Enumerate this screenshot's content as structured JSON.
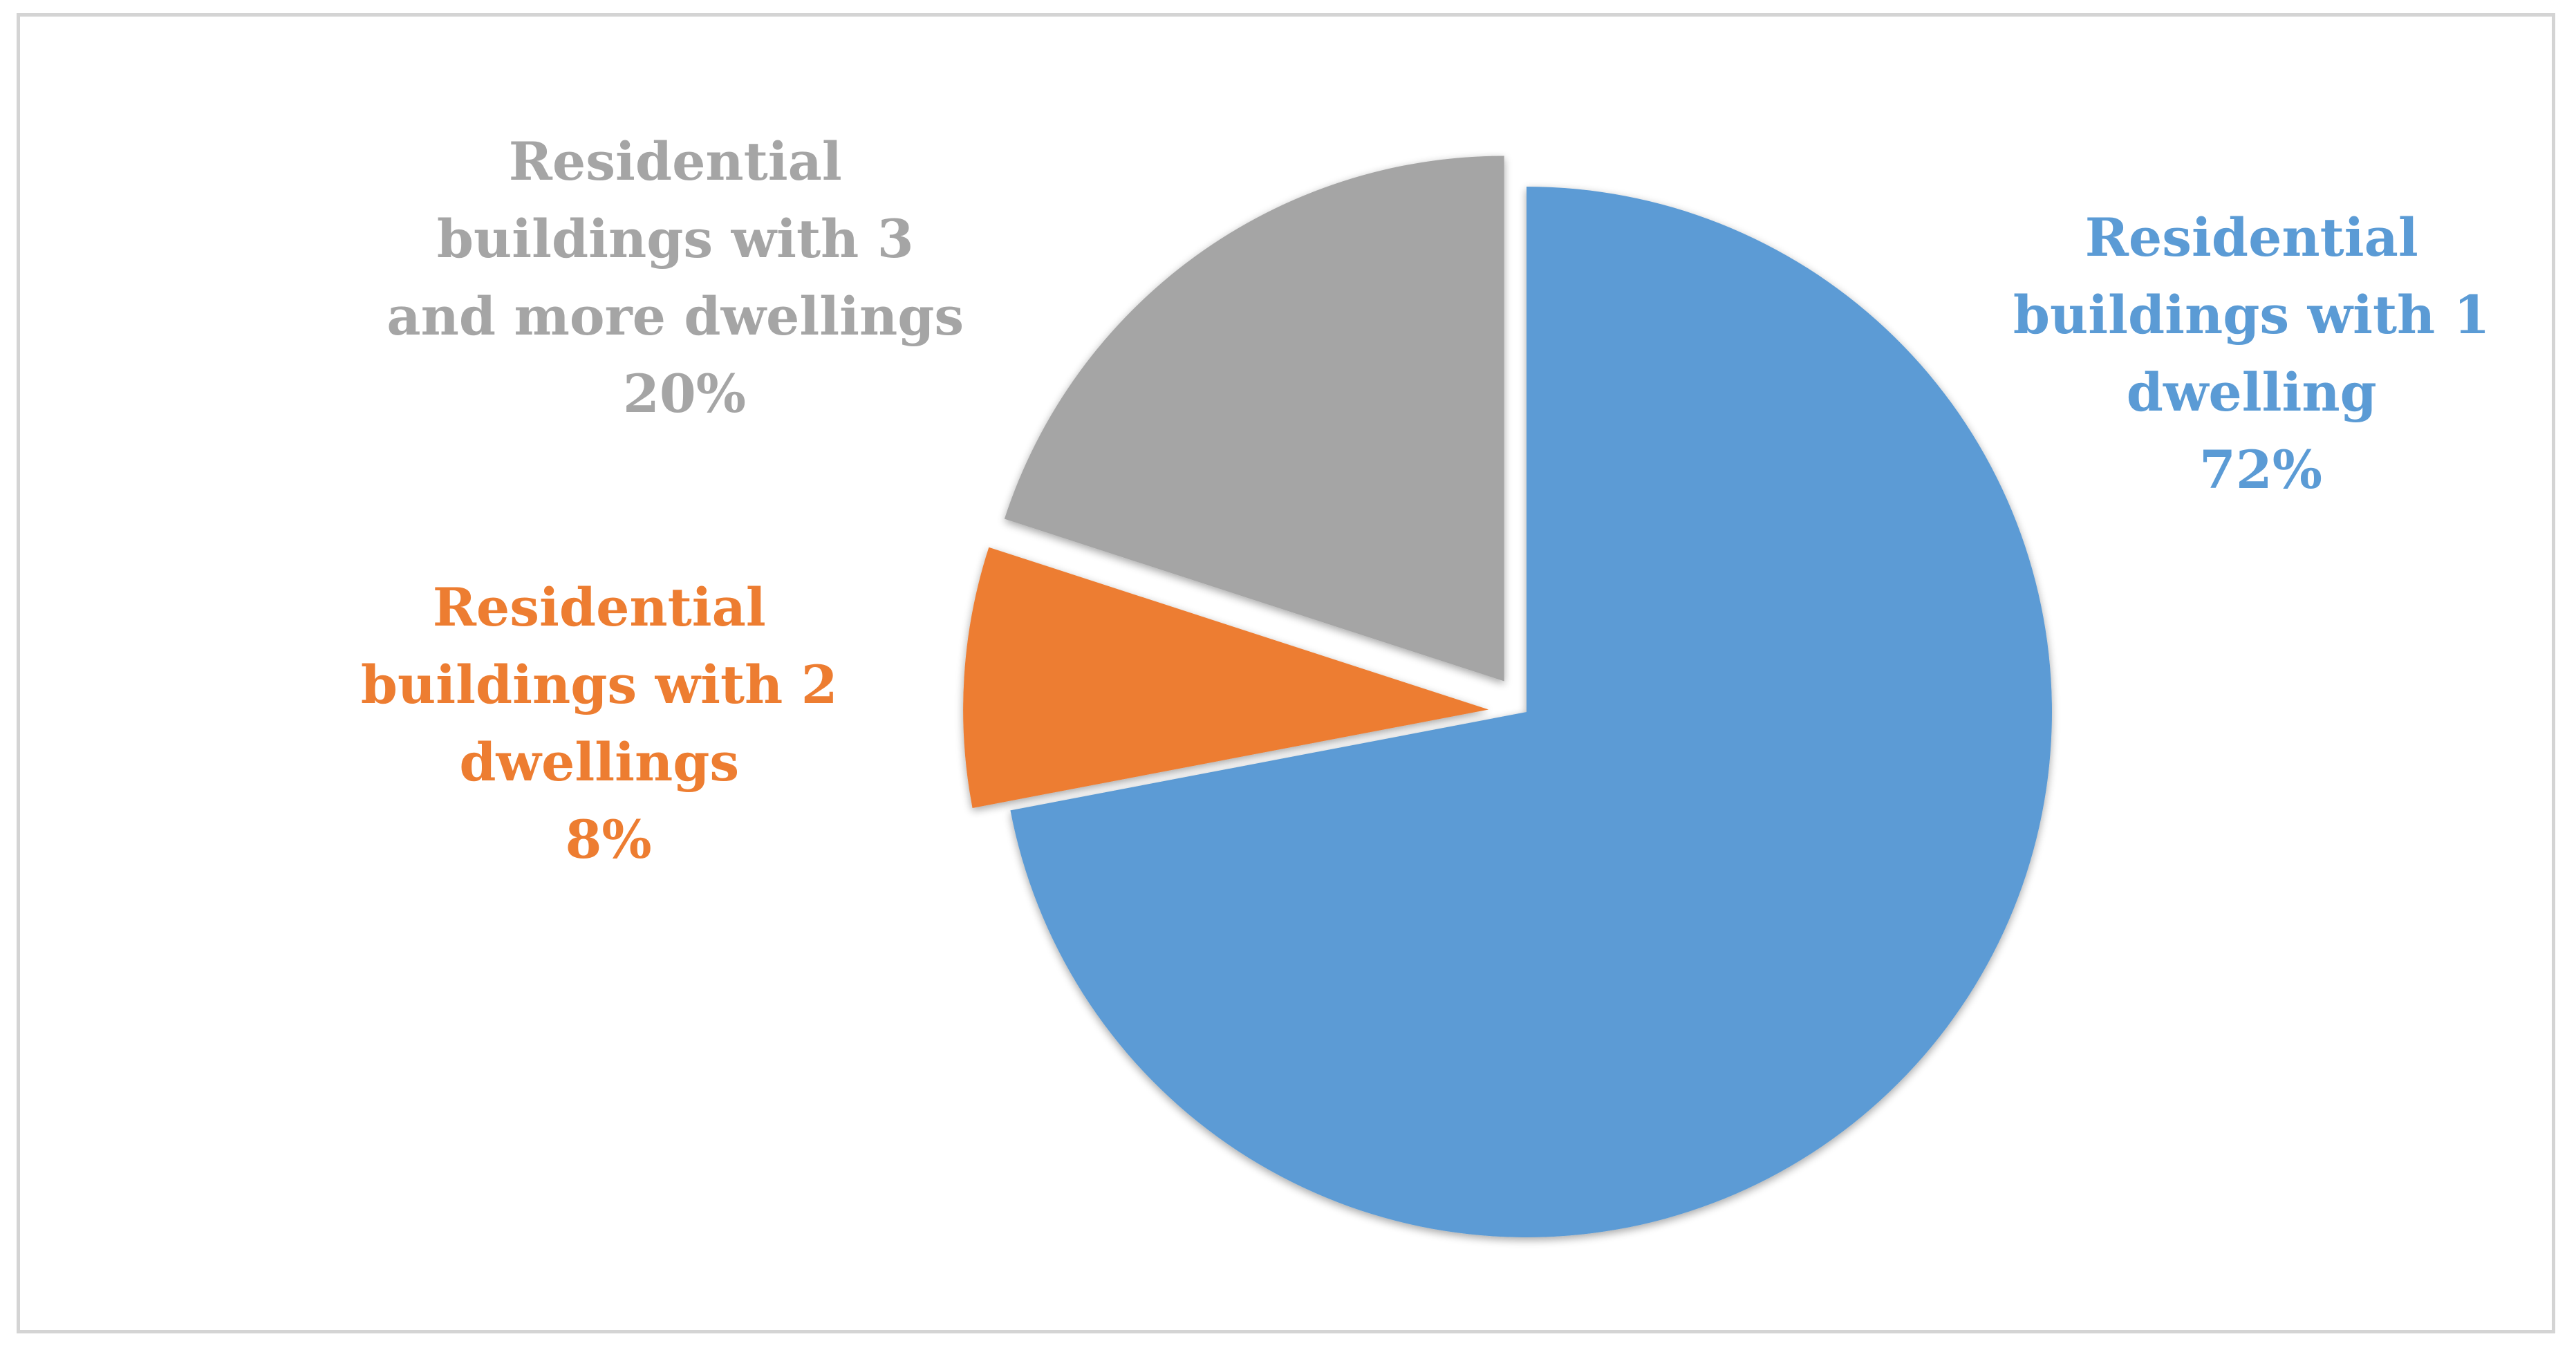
{
  "chart_data": {
    "type": "pie",
    "title": "",
    "slices": [
      {
        "label_lines": [
          "Residential",
          "buildings with 1",
          "dwelling"
        ],
        "value": 72,
        "value_label": "72%",
        "color": "#5B9BD5",
        "exploded": false
      },
      {
        "label_lines": [
          "Residential",
          "buildings with 2",
          "dwellings"
        ],
        "value": 8,
        "value_label": "8%",
        "color": "#ED7D31",
        "exploded": true
      },
      {
        "label_lines": [
          "Residential",
          "buildings with 3",
          "and more dwellings"
        ],
        "value": 20,
        "value_label": "20%",
        "color": "#A5A5A5",
        "exploded": true
      }
    ],
    "start_angle_deg": 0,
    "direction": "clockwise",
    "legend": "none",
    "data_labels": "outside, category name and percentage"
  }
}
